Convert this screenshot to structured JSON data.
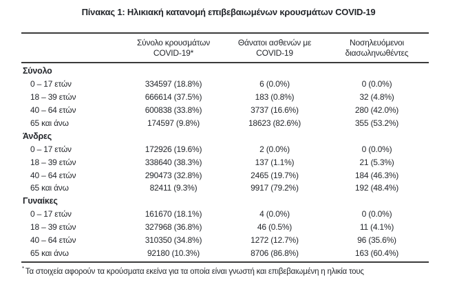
{
  "title": "Πίνακας 1: Ηλικιακή κατανομή επιβεβαιωμένων κρουσμάτων COVID-19",
  "table": {
    "columns": [
      {
        "line1": "Σύνολο κρουσμάτων",
        "line2": "COVID-19*"
      },
      {
        "line1": "Θάνατοι ασθενών με",
        "line2": "COVID-19"
      },
      {
        "line1": "Νοσηλευόμενοι",
        "line2": "διασωληνωθέντες"
      }
    ],
    "sections": [
      {
        "label": "Σύνολο",
        "rows": [
          {
            "label": "0 – 17 ετών",
            "cases": "334597 (18.8%)",
            "deaths": "6 (0.0%)",
            "intubated": "0 (0.0%)"
          },
          {
            "label": "18 – 39 ετών",
            "cases": "666614 (37.5%)",
            "deaths": "183 (0.8%)",
            "intubated": "32 (4.8%)"
          },
          {
            "label": "40 – 64 ετών",
            "cases": "600838 (33.8%)",
            "deaths": "3737 (16.6%)",
            "intubated": "280 (42.0%)"
          },
          {
            "label": "65 και άνω",
            "cases": "174597 (9.8%)",
            "deaths": "18623 (82.6%)",
            "intubated": "355 (53.2%)"
          }
        ]
      },
      {
        "label": "Άνδρες",
        "rows": [
          {
            "label": "0 – 17 ετών",
            "cases": "172926 (19.6%)",
            "deaths": "2 (0.0%)",
            "intubated": "0 (0.0%)"
          },
          {
            "label": "18 – 39 ετών",
            "cases": "338640 (38.3%)",
            "deaths": "137 (1.1%)",
            "intubated": "21 (5.3%)"
          },
          {
            "label": "40 – 64 ετών",
            "cases": "290473 (32.8%)",
            "deaths": "2465 (19.7%)",
            "intubated": "184 (46.3%)"
          },
          {
            "label": "65 και άνω",
            "cases": "82411 (9.3%)",
            "deaths": "9917 (79.2%)",
            "intubated": "192 (48.4%)"
          }
        ]
      },
      {
        "label": "Γυναίκες",
        "rows": [
          {
            "label": "0 – 17 ετών",
            "cases": "161670 (18.1%)",
            "deaths": "4 (0.0%)",
            "intubated": "0 (0.0%)"
          },
          {
            "label": "18 – 39 ετών",
            "cases": "327968 (36.8%)",
            "deaths": "46 (0.5%)",
            "intubated": "11 (4.1%)"
          },
          {
            "label": "40 – 64 ετών",
            "cases": "310350 (34.8%)",
            "deaths": "1272 (12.7%)",
            "intubated": "96 (35.6%)"
          },
          {
            "label": "65 και άνω",
            "cases": "92180 (10.3%)",
            "deaths": "8706 (86.8%)",
            "intubated": "163 (60.4%)"
          }
        ]
      }
    ]
  },
  "footnote": {
    "marker": "*",
    "text": "Τα στοιχεία αφορούν τα κρούσματα εκείνα για τα οποία είναι γνωστή και επιβεβαιωμένη η ηλικία τους"
  }
}
